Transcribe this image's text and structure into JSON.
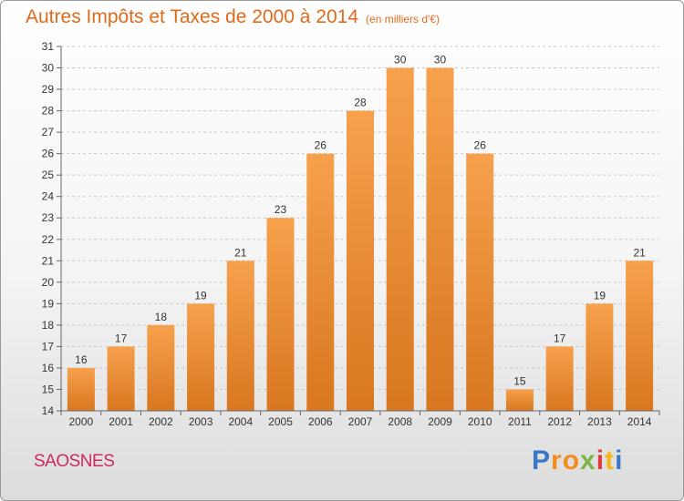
{
  "chart_data": {
    "type": "bar",
    "title": "Autres Impôts et Taxes de 2000 à 2014",
    "unit_label": "(en milliers d'€)",
    "categories": [
      "2000",
      "2001",
      "2002",
      "2003",
      "2004",
      "2005",
      "2006",
      "2007",
      "2008",
      "2009",
      "2010",
      "2011",
      "2012",
      "2013",
      "2014"
    ],
    "values": [
      16,
      17,
      18,
      19,
      21,
      23,
      26,
      28,
      30,
      30,
      26,
      15,
      17,
      19,
      21
    ],
    "ylim": [
      14,
      31
    ],
    "yticks": [
      "14",
      "15",
      "16",
      "17",
      "18",
      "19",
      "20",
      "21",
      "22",
      "23",
      "24",
      "25",
      "26",
      "27",
      "28",
      "29",
      "30",
      "31"
    ],
    "grid": true,
    "bar_color_top": "#f7a14d",
    "bar_color_bottom": "#d8771f"
  },
  "footer": {
    "commune": "SAOSNES",
    "logo_letters": [
      "P",
      "r",
      "o",
      "x",
      "i",
      "t",
      "i"
    ],
    "logo_colors": [
      "#3a78c8",
      "#f28c1e",
      "#f28c1e",
      "#7ab648",
      "#e03a3a",
      "#f2b81e",
      "#3a78c8"
    ]
  }
}
